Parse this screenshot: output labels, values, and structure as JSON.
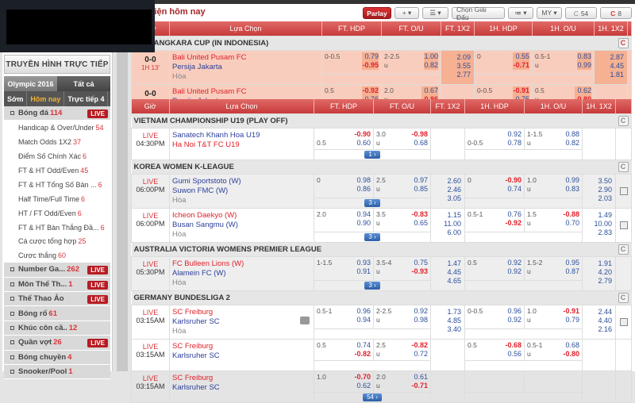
{
  "header": {
    "title": "Sự kiện hôm nay"
  },
  "toolbar": {
    "parlay": "Parlay",
    "plus": "+ ▾",
    "sort": "☰ ▾",
    "choose_league": "Chọn Giải Đấu",
    "list": "≔ ▾",
    "odds_type": "MY ▾",
    "refresh_today": "54",
    "refresh_live": "8"
  },
  "sidebar": {
    "tv_button": "TRUYỀN HÌNH TRỰC TIẾP",
    "tabs": [
      {
        "label": "Olympic 2016",
        "active": false
      },
      {
        "label": "Tất cả",
        "active": true
      }
    ],
    "subtabs": [
      {
        "label": "Sớm",
        "active": false
      },
      {
        "label": "Hôm nay",
        "active": true
      },
      {
        "label": "Trực tiếp 4",
        "active": false
      }
    ],
    "sport": {
      "label": "Bóng đá",
      "count": "114",
      "live": "LIVE"
    },
    "markets": [
      {
        "label": "Handicap & Over/Under",
        "count": "54"
      },
      {
        "label": "Match Odds 1X2",
        "count": "37"
      },
      {
        "label": "Điểm Số Chính Xác",
        "count": "6"
      },
      {
        "label": "FT & HT Odd/Even",
        "count": "45"
      },
      {
        "label": "FT & HT Tổng Số Bàn ...",
        "count": "6"
      },
      {
        "label": "Half Time/Full Time",
        "count": "6"
      },
      {
        "label": "HT / FT Odd/Even",
        "count": "6"
      },
      {
        "label": "FT & HT Bàn Thắng Đầ...",
        "count": "6"
      },
      {
        "label": "Cá cược tổng hợp",
        "count": "25"
      },
      {
        "label": "Cược thắng",
        "count": "60"
      }
    ],
    "sports": [
      {
        "label": "Number Ga...",
        "count": "262",
        "live": "LIVE"
      },
      {
        "label": "Môn Thể Th...",
        "count": "1",
        "live": "LIVE"
      },
      {
        "label": "Thể Thao Ảo",
        "count": "",
        "live": "LIVE"
      },
      {
        "label": "Bóng rổ",
        "count": "61",
        "live": ""
      },
      {
        "label": "Khúc côn cầ..",
        "count": "12",
        "live": ""
      },
      {
        "label": "Quần vợt",
        "count": "26",
        "live": "LIVE"
      },
      {
        "label": "Bóng chuyền",
        "count": "4",
        "live": ""
      },
      {
        "label": "Snooker/Pool",
        "count": "1",
        "live": ""
      }
    ]
  },
  "columns": {
    "time": "Giờ",
    "selection": "Lựa Chọn",
    "ft_hdp": "FT. HDP",
    "ft_ou": "FT. O/U",
    "ft_1x2": "FT. 1X2",
    "h1_hdp": "1H. HDP",
    "h1_ou": "1H. O/U",
    "h1_1x2": "1H. 1X2"
  },
  "live": {
    "leagues": [
      {
        "name": "BHAYANGKARA CUP (IN INDONESIA)",
        "matches": [
          {
            "score": "0-0",
            "period": "1H 13'",
            "home": "Bali United Pusam FC",
            "away": "Persija Jakarta",
            "draw": "Hòa",
            "fav": "home",
            "ft_hdp": {
              "line": "0-0.5",
              "line_row": 1,
              "odds": [
                "0.79",
                "-0.95"
              ]
            },
            "ft_ou": {
              "line": "2-2.5",
              "side": "u",
              "odds": [
                "1.00",
                "0.82"
              ]
            },
            "ft_1x2": [
              "2.09",
              "3.55",
              "2.77"
            ],
            "h1_hdp": {
              "line": "0",
              "line_row": 1,
              "odds": [
                "0.55",
                "-0.71"
              ]
            },
            "h1_ou": {
              "line": "0.5-1",
              "side": "u",
              "odds": [
                "0.83",
                "0.99"
              ]
            },
            "h1_1x2": [
              "2.87",
              "4.45",
              "1.81"
            ]
          },
          {
            "score": "0-0",
            "period": "1H 13'",
            "home": "Bali United Pusam FC",
            "away": "Persija Jakarta",
            "draw": "",
            "fav": "home",
            "ft_hdp": {
              "line": "0.5",
              "line_row": 1,
              "odds": [
                "-0.92",
                "0.76"
              ]
            },
            "ft_ou": {
              "line": "2.0",
              "side": "u",
              "odds": [
                "0.67",
                "-0.86"
              ]
            },
            "ft_1x2": [],
            "h1_hdp": {
              "line": "0-0.5",
              "line_row": 1,
              "odds": [
                "-0.91",
                "0.75"
              ]
            },
            "h1_ou": {
              "line": "0.5",
              "side": "u",
              "odds": [
                "0.62",
                "-0.80"
              ]
            },
            "h1_1x2": []
          }
        ]
      }
    ]
  },
  "today": {
    "leagues": [
      {
        "name": "VIETNAM CHAMPIONSHIP U19 (PLAY OFF)",
        "matches": [
          {
            "status": "LIVE",
            "time": "04:30PM",
            "home": "Sanatech Khanh Hoa U19",
            "away": "Ha Noi T&T FC U19",
            "draw": "",
            "fav": "away",
            "ft_hdp": {
              "line": "0.5",
              "line_row": 2,
              "odds": [
                "-0.90",
                "0.60"
              ]
            },
            "ft_ou": {
              "line": "3.0",
              "side": "u",
              "odds": [
                "-0.98",
                "0.68"
              ]
            },
            "ft_1x2": [],
            "h1_hdp": {
              "line": "0-0.5",
              "line_row": 2,
              "odds": [
                "0.92",
                "0.78"
              ]
            },
            "h1_ou": {
              "line": "1-1.5",
              "side": "u",
              "odds": [
                "0.88",
                "0.82"
              ]
            },
            "h1_1x2": [],
            "more": "1"
          }
        ]
      },
      {
        "name": "KOREA WOMEN K-LEAGUE",
        "matches": [
          {
            "status": "LIVE",
            "time": "06:00PM",
            "home": "Gumi Sportstoto (W)",
            "away": "Suwon FMC (W)",
            "draw": "Hòa",
            "fav": "none",
            "shade": true,
            "stats": true,
            "ft_hdp": {
              "line": "0",
              "line_row": 1,
              "odds": [
                "0.98",
                "0.86"
              ]
            },
            "ft_ou": {
              "line": "2.5",
              "side": "u",
              "odds": [
                "0.97",
                "0.85"
              ]
            },
            "ft_1x2": [
              "2.60",
              "2.46",
              "3.05"
            ],
            "h1_hdp": {
              "line": "0",
              "line_row": 1,
              "odds": [
                "-0.90",
                "0.74"
              ]
            },
            "h1_ou": {
              "line": "1.0",
              "side": "u",
              "odds": [
                "0.99",
                "0.83"
              ]
            },
            "h1_1x2": [
              "3.50",
              "2.90",
              "2.03"
            ],
            "more": "3"
          },
          {
            "status": "LIVE",
            "time": "06:00PM",
            "home": "Icheon Daekyo (W)",
            "away": "Busan Sangmu (W)",
            "draw": "Hòa",
            "fav": "home",
            "stats": true,
            "ft_hdp": {
              "line": "2.0",
              "line_row": 1,
              "odds": [
                "0.94",
                "0.90"
              ]
            },
            "ft_ou": {
              "line": "3.5",
              "side": "u",
              "odds": [
                "-0.83",
                "0.65"
              ]
            },
            "ft_1x2": [
              "1.15",
              "11.00",
              "6.00"
            ],
            "h1_hdp": {
              "line": "0.5-1",
              "line_row": 1,
              "odds": [
                "0.76",
                "-0.92"
              ]
            },
            "h1_ou": {
              "line": "1.5",
              "side": "u",
              "odds": [
                "-0.88",
                "0.70"
              ]
            },
            "h1_1x2": [
              "1.49",
              "10.00",
              "2.83"
            ],
            "more": "3"
          }
        ]
      },
      {
        "name": "AUSTRALIA VICTORIA WOMENS PREMIER LEAGUE",
        "matches": [
          {
            "status": "LIVE",
            "time": "05:30PM",
            "home": "FC Bulleen Lions (W)",
            "away": "Alamein FC (W)",
            "draw": "Hòa",
            "fav": "home",
            "shade": true,
            "ft_hdp": {
              "line": "1-1.5",
              "line_row": 1,
              "odds": [
                "0.93",
                "0.91"
              ]
            },
            "ft_ou": {
              "line": "3.5-4",
              "side": "u",
              "odds": [
                "0.75",
                "-0.93"
              ]
            },
            "ft_1x2": [
              "1.47",
              "4.45",
              "4.65"
            ],
            "h1_hdp": {
              "line": "0.5",
              "line_row": 1,
              "odds": [
                "0.92",
                "0.92"
              ]
            },
            "h1_ou": {
              "line": "1.5-2",
              "side": "u",
              "odds": [
                "0.95",
                "0.87"
              ]
            },
            "h1_1x2": [
              "1.91",
              "4.20",
              "2.79"
            ],
            "more": "3"
          }
        ]
      },
      {
        "name": "GERMANY BUNDESLIGA 2",
        "matches": [
          {
            "status": "LIVE",
            "time": "03:15AM",
            "home": "SC Freiburg",
            "away": "Karlsruher SC",
            "draw": "Hòa",
            "fav": "home",
            "tv": true,
            "stats": true,
            "ft_hdp": {
              "line": "0.5-1",
              "line_row": 1,
              "odds": [
                "0.96",
                "0.94"
              ]
            },
            "ft_ou": {
              "line": "2-2.5",
              "side": "u",
              "odds": [
                "0.92",
                "0.98"
              ]
            },
            "ft_1x2": [
              "1.73",
              "4.85",
              "3.40"
            ],
            "h1_hdp": {
              "line": "0-0.5",
              "line_row": 1,
              "odds": [
                "0.96",
                "0.92"
              ]
            },
            "h1_ou": {
              "line": "1.0",
              "side": "u",
              "odds": [
                "-0.91",
                "0.79"
              ]
            },
            "h1_1x2": [
              "2.44",
              "4.40",
              "2.16"
            ]
          },
          {
            "status": "LIVE",
            "time": "03:15AM",
            "home": "SC Freiburg",
            "away": "Karlsruher SC",
            "draw": "",
            "fav": "home",
            "ft_hdp": {
              "line": "0.5",
              "line_row": 1,
              "odds": [
                "0.74",
                "-0.82"
              ]
            },
            "ft_ou": {
              "line": "2.5",
              "side": "u",
              "odds": [
                "-0.82",
                "0.72"
              ]
            },
            "ft_1x2": [],
            "h1_hdp": {
              "line": "0.5",
              "line_row": 1,
              "odds": [
                "-0.68",
                "0.56"
              ]
            },
            "h1_ou": {
              "line": "0.5-1",
              "side": "u",
              "odds": [
                "0.68",
                "-0.80"
              ]
            },
            "h1_1x2": []
          },
          {
            "status": "LIVE",
            "time": "03:15AM",
            "home": "SC Freiburg",
            "away": "Karlsruher SC",
            "draw": "",
            "fav": "home",
            "ft_hdp": {
              "line": "1.0",
              "line_row": 1,
              "odds": [
                "-0.70",
                "0.62"
              ]
            },
            "ft_ou": {
              "line": "2.0",
              "side": "u",
              "odds": [
                "0.61",
                "-0.71"
              ]
            },
            "ft_1x2": [],
            "h1_hdp": null,
            "h1_ou": null,
            "h1_1x2": [],
            "more": "54"
          }
        ]
      }
    ]
  }
}
